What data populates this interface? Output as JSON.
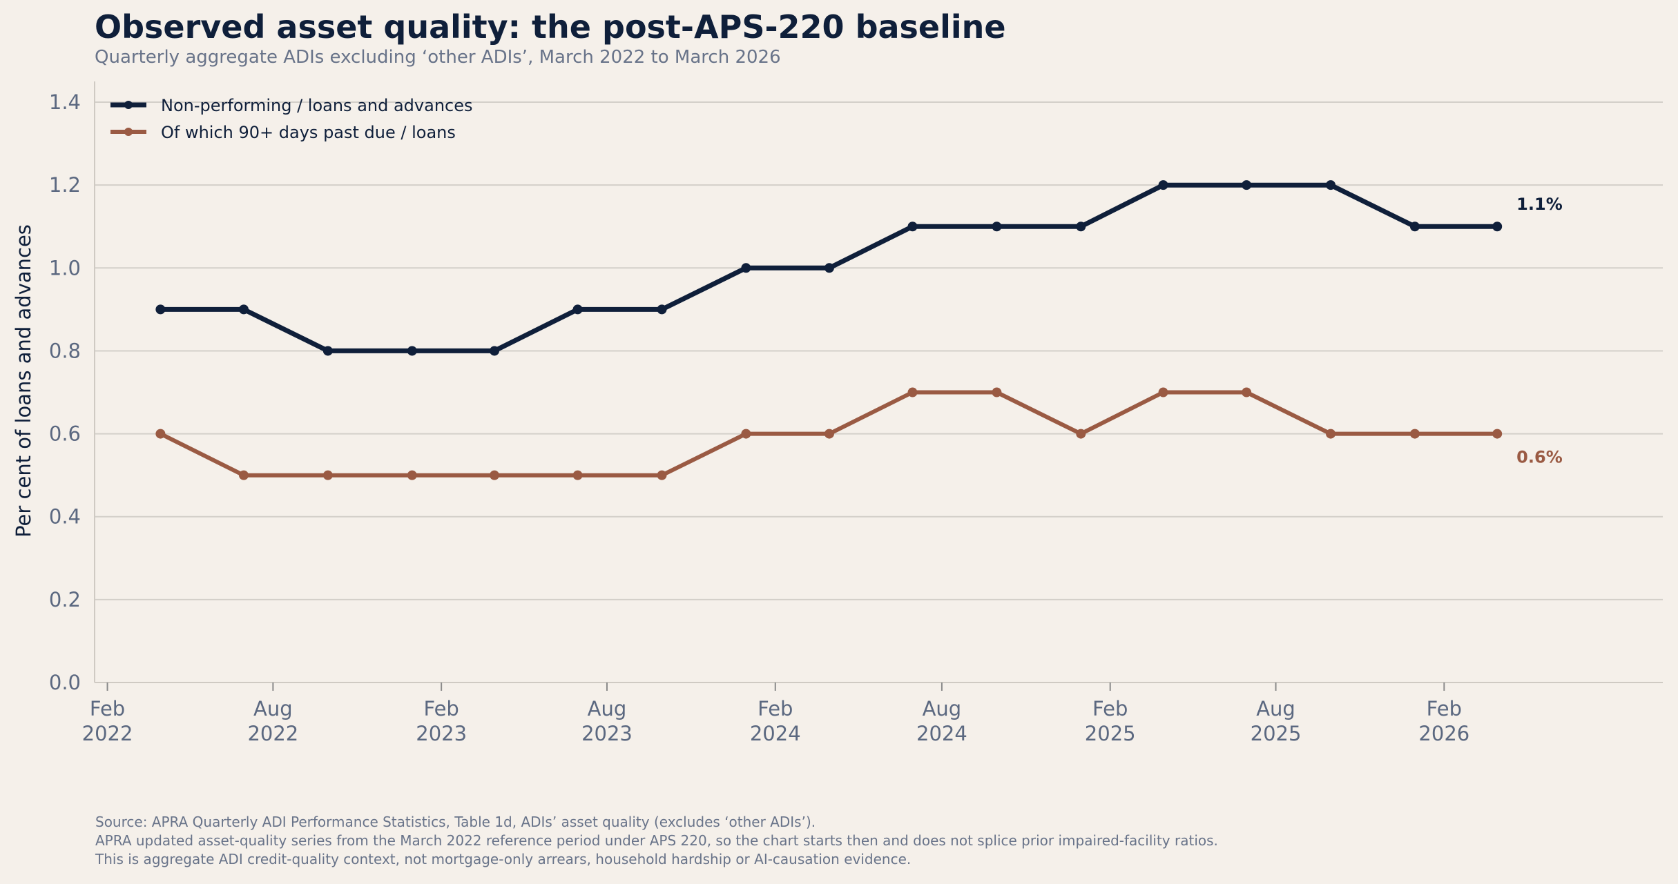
{
  "header": {
    "title": "Observed asset quality: the post-APS-220 baseline",
    "subtitle": "Quarterly aggregate ADIs excluding ‘other ADIs’, March 2022 to March 2026"
  },
  "footer": {
    "notes": [
      "Source: APRA Quarterly ADI Performance Statistics, Table 1d, ADIs’ asset quality (excludes ‘other ADIs’).",
      "APRA updated asset-quality series from the March 2022 reference period under APS 220, so the chart starts then and does not splice prior impaired-facility ratios.",
      "This is aggregate ADI credit-quality context, not mortgage-only arrears, household hardship or AI-causation evidence."
    ]
  },
  "chart_data": {
    "type": "line",
    "ylabel": "Per cent of loans and advances",
    "ylim": [
      0,
      1.45
    ],
    "yticks": [
      0.0,
      0.2,
      0.4,
      0.6,
      0.8,
      1.0,
      1.2,
      1.4
    ],
    "ytick_labels": [
      "0.0",
      "0.2",
      "0.4",
      "0.6",
      "0.8",
      "1.0",
      "1.2",
      "1.4"
    ],
    "xlim": [
      "2022-01-18",
      "2026-09-28"
    ],
    "xticks": [
      {
        "date": "2022-02-01",
        "label": [
          "Feb",
          "2022"
        ]
      },
      {
        "date": "2022-08-01",
        "label": [
          "Aug",
          "2022"
        ]
      },
      {
        "date": "2023-02-01",
        "label": [
          "Feb",
          "2023"
        ]
      },
      {
        "date": "2023-08-01",
        "label": [
          "Aug",
          "2023"
        ]
      },
      {
        "date": "2024-02-01",
        "label": [
          "Feb",
          "2024"
        ]
      },
      {
        "date": "2024-08-01",
        "label": [
          "Aug",
          "2024"
        ]
      },
      {
        "date": "2025-02-01",
        "label": [
          "Feb",
          "2025"
        ]
      },
      {
        "date": "2025-08-01",
        "label": [
          "Aug",
          "2025"
        ]
      },
      {
        "date": "2026-02-01",
        "label": [
          "Feb",
          "2026"
        ]
      }
    ],
    "x": [
      "2022-03-31",
      "2022-06-30",
      "2022-09-30",
      "2022-12-31",
      "2023-03-31",
      "2023-06-30",
      "2023-09-30",
      "2023-12-31",
      "2024-03-31",
      "2024-06-30",
      "2024-09-30",
      "2024-12-31",
      "2025-03-31",
      "2025-06-30",
      "2025-09-30",
      "2025-12-31",
      "2026-03-31"
    ],
    "series": [
      {
        "name": "Non-performing / loans and advances",
        "color": "#0f1f3a",
        "values": [
          0.9,
          0.9,
          0.8,
          0.8,
          0.8,
          0.9,
          0.9,
          1.0,
          1.0,
          1.1,
          1.1,
          1.1,
          1.2,
          1.2,
          1.2,
          1.1,
          1.1
        ],
        "end_label": "1.1%"
      },
      {
        "name": "Of which 90+ days past due / loans",
        "color": "#9a5a43",
        "values": [
          0.6,
          0.5,
          0.5,
          0.5,
          0.5,
          0.5,
          0.5,
          0.6,
          0.6,
          0.7,
          0.7,
          0.6,
          0.7,
          0.7,
          0.6,
          0.6,
          0.6
        ],
        "end_label": "0.6%"
      }
    ],
    "grid": "horizontal",
    "legend_position": "top-left"
  }
}
